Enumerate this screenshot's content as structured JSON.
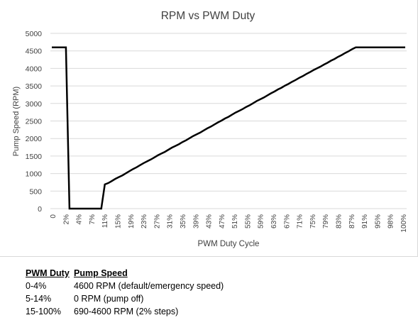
{
  "chart_data": {
    "type": "line",
    "title": "RPM vs PWM Duty",
    "xlabel": "PWM Duty Cycle",
    "ylabel": "Pump Speed (RPM)",
    "ylim": [
      0,
      5000
    ],
    "yticks": [
      0,
      500,
      1000,
      1500,
      2000,
      2500,
      3000,
      3500,
      4000,
      4500,
      5000
    ],
    "grid": "horizontal",
    "legend": "none",
    "color": "#000000",
    "x": [
      0,
      1,
      2,
      3,
      4,
      5,
      6,
      7,
      8,
      9,
      10,
      11,
      12,
      13,
      14,
      15,
      16,
      17,
      18,
      19,
      20,
      21,
      22,
      23,
      24,
      25,
      26,
      27,
      28,
      29,
      30,
      31,
      32,
      33,
      34,
      35,
      36,
      37,
      38,
      39,
      40,
      41,
      42,
      43,
      44,
      45,
      46,
      47,
      48,
      49,
      50,
      51,
      52,
      53,
      54,
      55,
      56,
      57,
      58,
      59,
      60,
      61,
      62,
      63,
      64,
      65,
      66,
      67,
      68,
      69,
      70,
      71,
      72,
      73,
      74,
      75,
      76,
      77,
      78,
      79,
      80,
      81,
      82,
      83,
      84,
      85,
      86,
      87,
      88,
      89,
      90,
      91,
      92,
      93,
      94,
      95,
      96,
      97,
      98,
      99,
      100
    ],
    "x_tick_labels": [
      "0",
      "2%",
      "4%",
      "7%",
      "11%",
      "15%",
      "19%",
      "23%",
      "27%",
      "31%",
      "35%",
      "39%",
      "43%",
      "47%",
      "51%",
      "55%",
      "59%",
      "63%",
      "67%",
      "71%",
      "75%",
      "79%",
      "83%",
      "87%",
      "91%",
      "95%",
      "98%",
      "100%"
    ],
    "values": [
      4600,
      4600,
      4600,
      4600,
      4600,
      0,
      0,
      0,
      0,
      0,
      0,
      0,
      0,
      0,
      0,
      690,
      730,
      790,
      850,
      900,
      950,
      1010,
      1070,
      1130,
      1180,
      1240,
      1300,
      1350,
      1400,
      1460,
      1520,
      1570,
      1620,
      1680,
      1740,
      1790,
      1840,
      1900,
      1950,
      2010,
      2070,
      2120,
      2170,
      2230,
      2290,
      2340,
      2400,
      2460,
      2510,
      2570,
      2620,
      2680,
      2740,
      2790,
      2840,
      2900,
      2950,
      3010,
      3070,
      3120,
      3170,
      3230,
      3290,
      3340,
      3400,
      3450,
      3510,
      3560,
      3620,
      3670,
      3730,
      3780,
      3840,
      3890,
      3950,
      4000,
      4050,
      4110,
      4160,
      4220,
      4270,
      4330,
      4380,
      4440,
      4490,
      4550,
      4600,
      4600,
      4600,
      4600,
      4600,
      4600,
      4600,
      4600,
      4600,
      4600,
      4600,
      4600,
      4600,
      4600,
      4600
    ]
  },
  "table": {
    "headers": [
      "PWM Duty",
      "Pump Speed"
    ],
    "rows": [
      [
        "0-4%",
        "4600 RPM (default/emergency speed)"
      ],
      [
        "5-14%",
        "0 RPM (pump off)"
      ],
      [
        "15-100%",
        "690-4600 RPM (2% steps)"
      ]
    ]
  }
}
